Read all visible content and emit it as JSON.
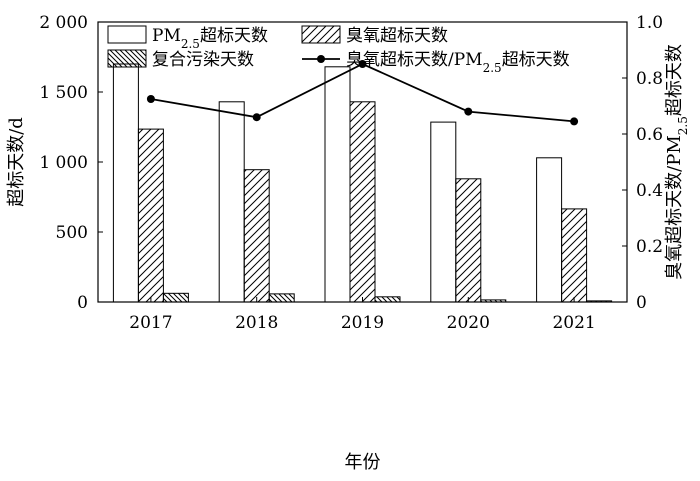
{
  "chart_data": {
    "type": "bar",
    "categories": [
      "2017",
      "2018",
      "2019",
      "2020",
      "2021"
    ],
    "series": [
      {
        "name": "PM2.5超标天数",
        "values": [
          1700,
          1430,
          1680,
          1285,
          1030
        ],
        "axis": "left",
        "pattern": "none"
      },
      {
        "name": "臭氧超标天数",
        "values": [
          1235,
          945,
          1430,
          880,
          665
        ],
        "axis": "left",
        "pattern": "hatch-forward"
      },
      {
        "name": "复合污染天数",
        "values": [
          62,
          58,
          37,
          15,
          8
        ],
        "axis": "left",
        "pattern": "hatch-backward"
      }
    ],
    "line_series": {
      "name": "臭氧超标天数/PM2.5超标天数",
      "values": [
        0.725,
        0.66,
        0.85,
        0.68,
        0.645
      ],
      "axis": "right",
      "marker": "circle"
    },
    "xlabel": "年份",
    "ylabel": "超标天数/d",
    "y2label": "臭氧超标天数/PM2.5超标天数",
    "ylim": [
      0,
      2000
    ],
    "y2lim": [
      0,
      1.0
    ],
    "yticks": [
      0,
      500,
      1000,
      1500,
      2000
    ],
    "ytick_labels": [
      "0",
      "500",
      "1 000",
      "1 500",
      "2 000"
    ],
    "y2ticks": [
      0,
      0.2,
      0.4,
      0.6,
      0.8,
      1.0
    ],
    "y2tick_labels": [
      "0",
      "0.2",
      "0.4",
      "0.6",
      "0.8",
      "1.0"
    ],
    "legend_position": "top",
    "grid": false,
    "colors": {
      "bar_fill": "#ffffff",
      "stroke": "#000000",
      "line": "#000000"
    }
  }
}
